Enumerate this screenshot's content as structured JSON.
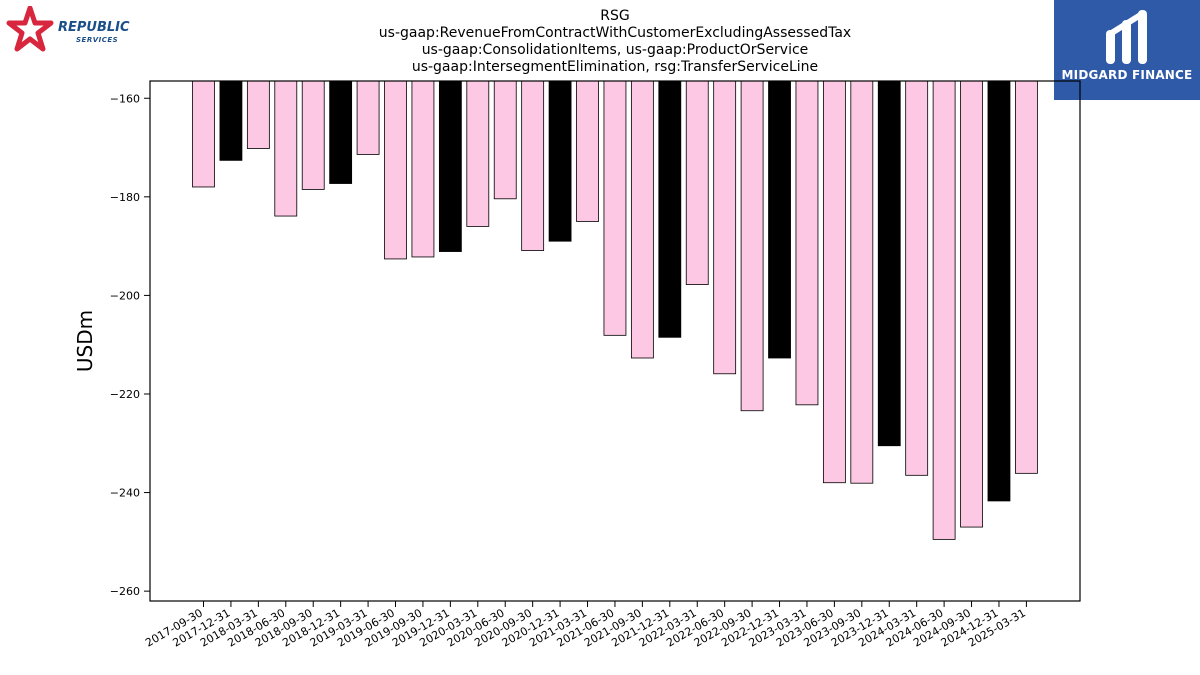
{
  "logos": {
    "left": {
      "word": "REPUBLIC",
      "sub": "SERVICES",
      "colors": {
        "star": "#d7263d",
        "text": "#1b4f8a"
      }
    },
    "right": {
      "word": "MIDGARD FINANCE",
      "colors": {
        "background": "#2e5aa8",
        "text": "#ffffff"
      }
    }
  },
  "chart_data": {
    "type": "bar",
    "title": [
      "RSG",
      "us-gaap:RevenueFromContractWithCustomerExcludingAssessedTax",
      "us-gaap:ConsolidationItems, us-gaap:ProductOrService",
      "us-gaap:IntersegmentElimination, rsg:TransferServiceLine"
    ],
    "xlabel": "",
    "ylabel": "USDm",
    "ylim": [
      -262,
      -156.5
    ],
    "yticks": [
      -160,
      -180,
      -200,
      -220,
      -240,
      -260
    ],
    "grid": false,
    "legend": "none",
    "colors": {
      "normal": "#fcc8e4",
      "q4": "#000000",
      "edge": "#000000"
    },
    "categories": [
      "2017-09-30",
      "2017-12-31",
      "2018-03-31",
      "2018-06-30",
      "2018-09-30",
      "2018-12-31",
      "2019-03-31",
      "2019-06-30",
      "2019-09-30",
      "2019-12-31",
      "2020-03-31",
      "2020-06-30",
      "2020-09-30",
      "2020-12-31",
      "2021-03-31",
      "2021-06-30",
      "2021-09-30",
      "2021-12-31",
      "2022-03-31",
      "2022-06-30",
      "2022-09-30",
      "2022-12-31",
      "2023-03-31",
      "2023-06-30",
      "2023-09-30",
      "2023-12-31",
      "2024-03-31",
      "2024-06-30",
      "2024-09-30",
      "2024-12-31",
      "2025-03-31"
    ],
    "values": [
      -178.0,
      -172.6,
      -170.2,
      -183.9,
      -178.5,
      -177.3,
      -171.4,
      -192.6,
      -192.2,
      -191.1,
      -186.0,
      -180.4,
      -190.9,
      -189.0,
      -185.0,
      -208.1,
      -212.7,
      -208.5,
      -197.8,
      -215.9,
      -223.4,
      -212.7,
      -222.2,
      -238.0,
      -238.1,
      -230.5,
      -236.5,
      -249.5,
      -247.0,
      -241.7,
      -236.1
    ],
    "highlight": [
      false,
      true,
      false,
      false,
      false,
      true,
      false,
      false,
      false,
      true,
      false,
      false,
      false,
      true,
      false,
      false,
      false,
      true,
      false,
      false,
      false,
      true,
      false,
      false,
      false,
      true,
      false,
      false,
      false,
      true,
      false
    ]
  }
}
